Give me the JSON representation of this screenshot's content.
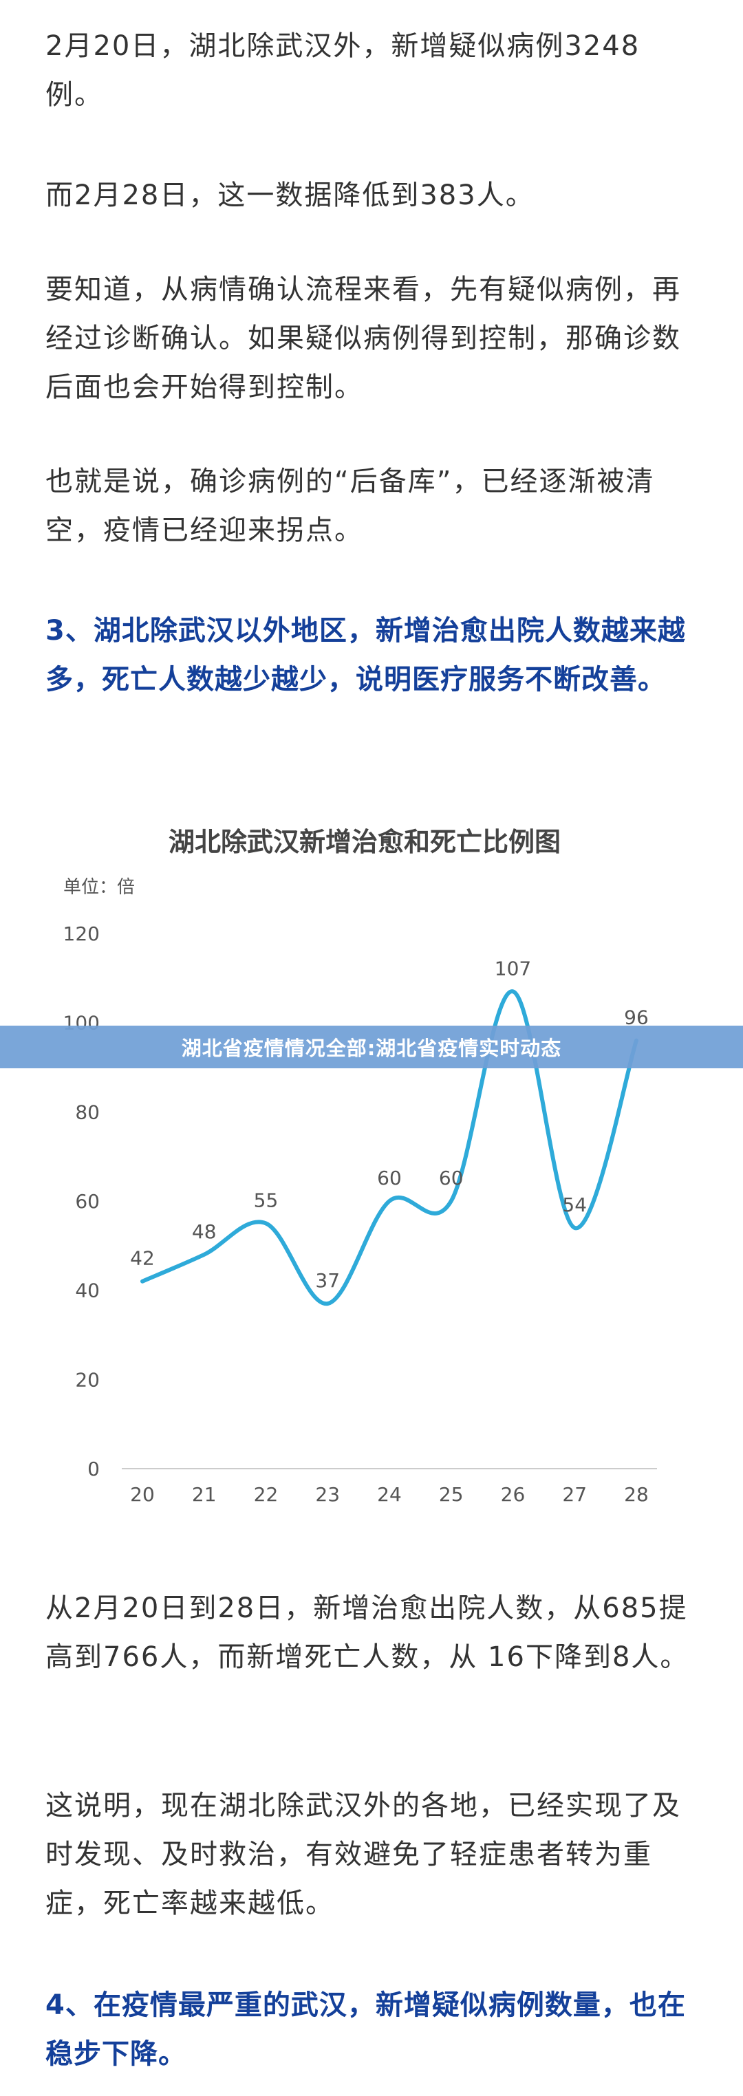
{
  "article": {
    "p1": "2月20日，湖北除武汉外，新增疑似病例3248例。",
    "p2": "而2月28日，这一数据降低到383人。",
    "p3": "要知道，从病情确认流程来看，先有疑似病例，再经过诊断确认。如果疑似病例得到控制，那确诊数后面也会开始得到控制。",
    "p4": "也就是说，确诊病例的“后备库”，已经逐渐被清空，疫情已经迎来拐点。",
    "h3": "3、湖北除武汉以外地区，新增治愈出院人数越来越多，死亡人数越少越少，说明医疗服务不断改善。",
    "p5": "从2月20日到28日，新增治愈出院人数，从685提高到766人，而新增死亡人数，从 16下降到8人。",
    "p6": "这说明，现在湖北除武汉外的各地，已经实现了及时发现、及时救治，有效避免了轻症患者转为重症，死亡率越来越低。",
    "h4": "4、在疫情最严重的武汉，新增疑似病例数量，也在稳步下降。"
  },
  "banner": {
    "text": "湖北省疫情情况全部:湖北省疫情实时动态"
  },
  "chart_data": {
    "type": "line",
    "title": "湖北除武汉新增治愈和死亡比例图",
    "unit_label": "单位：倍",
    "categories": [
      "20",
      "21",
      "22",
      "23",
      "24",
      "25",
      "26",
      "27",
      "28"
    ],
    "series": [
      {
        "values": [
          42,
          48,
          55,
          37,
          60,
          60,
          107,
          54,
          96
        ]
      }
    ],
    "ylim": [
      0,
      120
    ],
    "yticks": [
      "0",
      "20",
      "40",
      "60",
      "80",
      "100",
      "120"
    ],
    "grid": false,
    "line_color": "#2eaad9"
  }
}
